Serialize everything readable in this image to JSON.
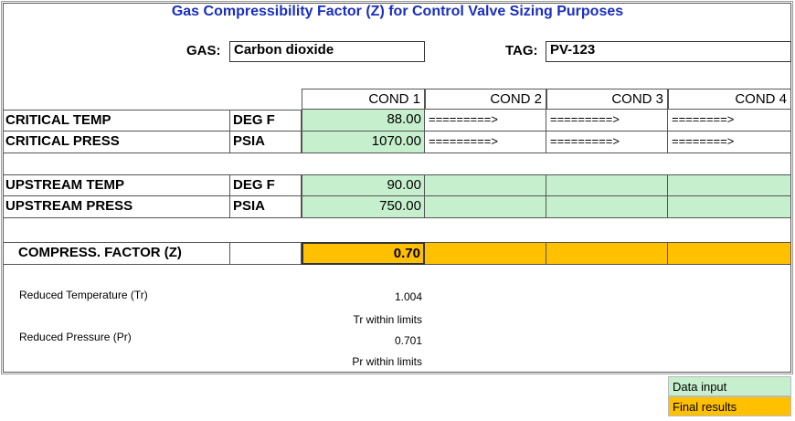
{
  "title": "Gas Compressibility Factor (Z) for Control Valve Sizing Purposes",
  "gas": {
    "label": "GAS:",
    "value": "Carbon dioxide"
  },
  "tag": {
    "label": "TAG:",
    "value": "PV-123"
  },
  "columns": [
    "COND 1",
    "COND 2",
    "COND 3",
    "COND 4"
  ],
  "critical_temp": {
    "label": "CRITICAL TEMP",
    "unit": "DEG F",
    "value": "88.00",
    "arrows": [
      "=========>",
      "=========>",
      "========>"
    ]
  },
  "critical_press": {
    "label": "CRITICAL PRESS",
    "unit": "PSIA",
    "value": "1070.00",
    "arrows": [
      "=========>",
      "=========>",
      "========>"
    ]
  },
  "upstream_temp": {
    "label": "UPSTREAM TEMP",
    "unit": "DEG F",
    "values": [
      "90.00",
      "",
      "",
      ""
    ]
  },
  "upstream_press": {
    "label": "UPSTREAM PRESS",
    "unit": "PSIA",
    "values": [
      "750.00",
      "",
      "",
      ""
    ]
  },
  "compress_factor": {
    "label": "COMPRESS. FACTOR (Z)",
    "values": [
      "0.70",
      "",
      "",
      ""
    ]
  },
  "reduced_temp": {
    "label": "Reduced Temperature (Tr)",
    "value": "1.004",
    "status": "Tr within limits"
  },
  "reduced_press": {
    "label": "Reduced Pressure (Pr)",
    "value": "0.701",
    "status": "Pr within limits"
  },
  "legend": {
    "input": "Data input",
    "results": "Final results"
  },
  "colors": {
    "input": "#c6efce",
    "results": "#ffc000",
    "title": "#1a2fbf"
  }
}
